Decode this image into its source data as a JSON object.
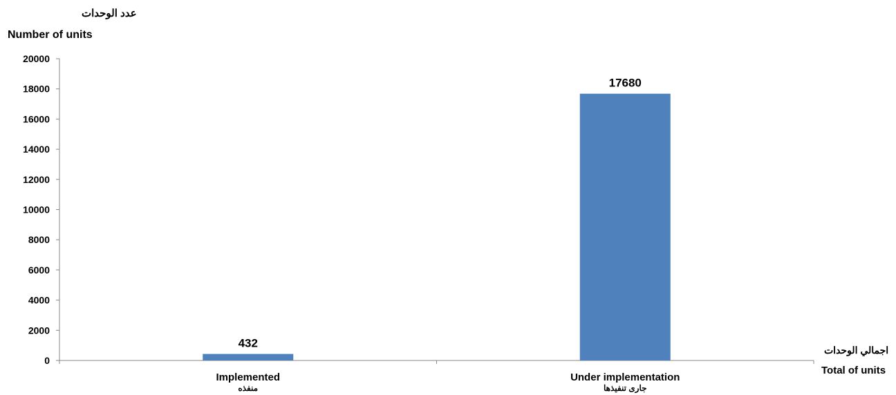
{
  "chart_data": {
    "type": "bar",
    "ylabel": [
      "عدد الوحدات",
      "Number of units"
    ],
    "xlabel": [
      "اجمالي الوحدات",
      "Total of units"
    ],
    "categories": [
      [
        "Implemented",
        "منفذه"
      ],
      [
        "Under implementation",
        "جارى تنفيذها"
      ]
    ],
    "values": [
      432,
      17680
    ],
    "data_labels": [
      "432",
      "17680"
    ],
    "ylim": [
      0,
      20000
    ],
    "yticks": [
      "0",
      "2000",
      "4000",
      "6000",
      "8000",
      "10000",
      "12000",
      "14000",
      "16000",
      "18000",
      "20000"
    ],
    "bar_color": "#4f81bd",
    "grid": false,
    "legend": "none"
  }
}
